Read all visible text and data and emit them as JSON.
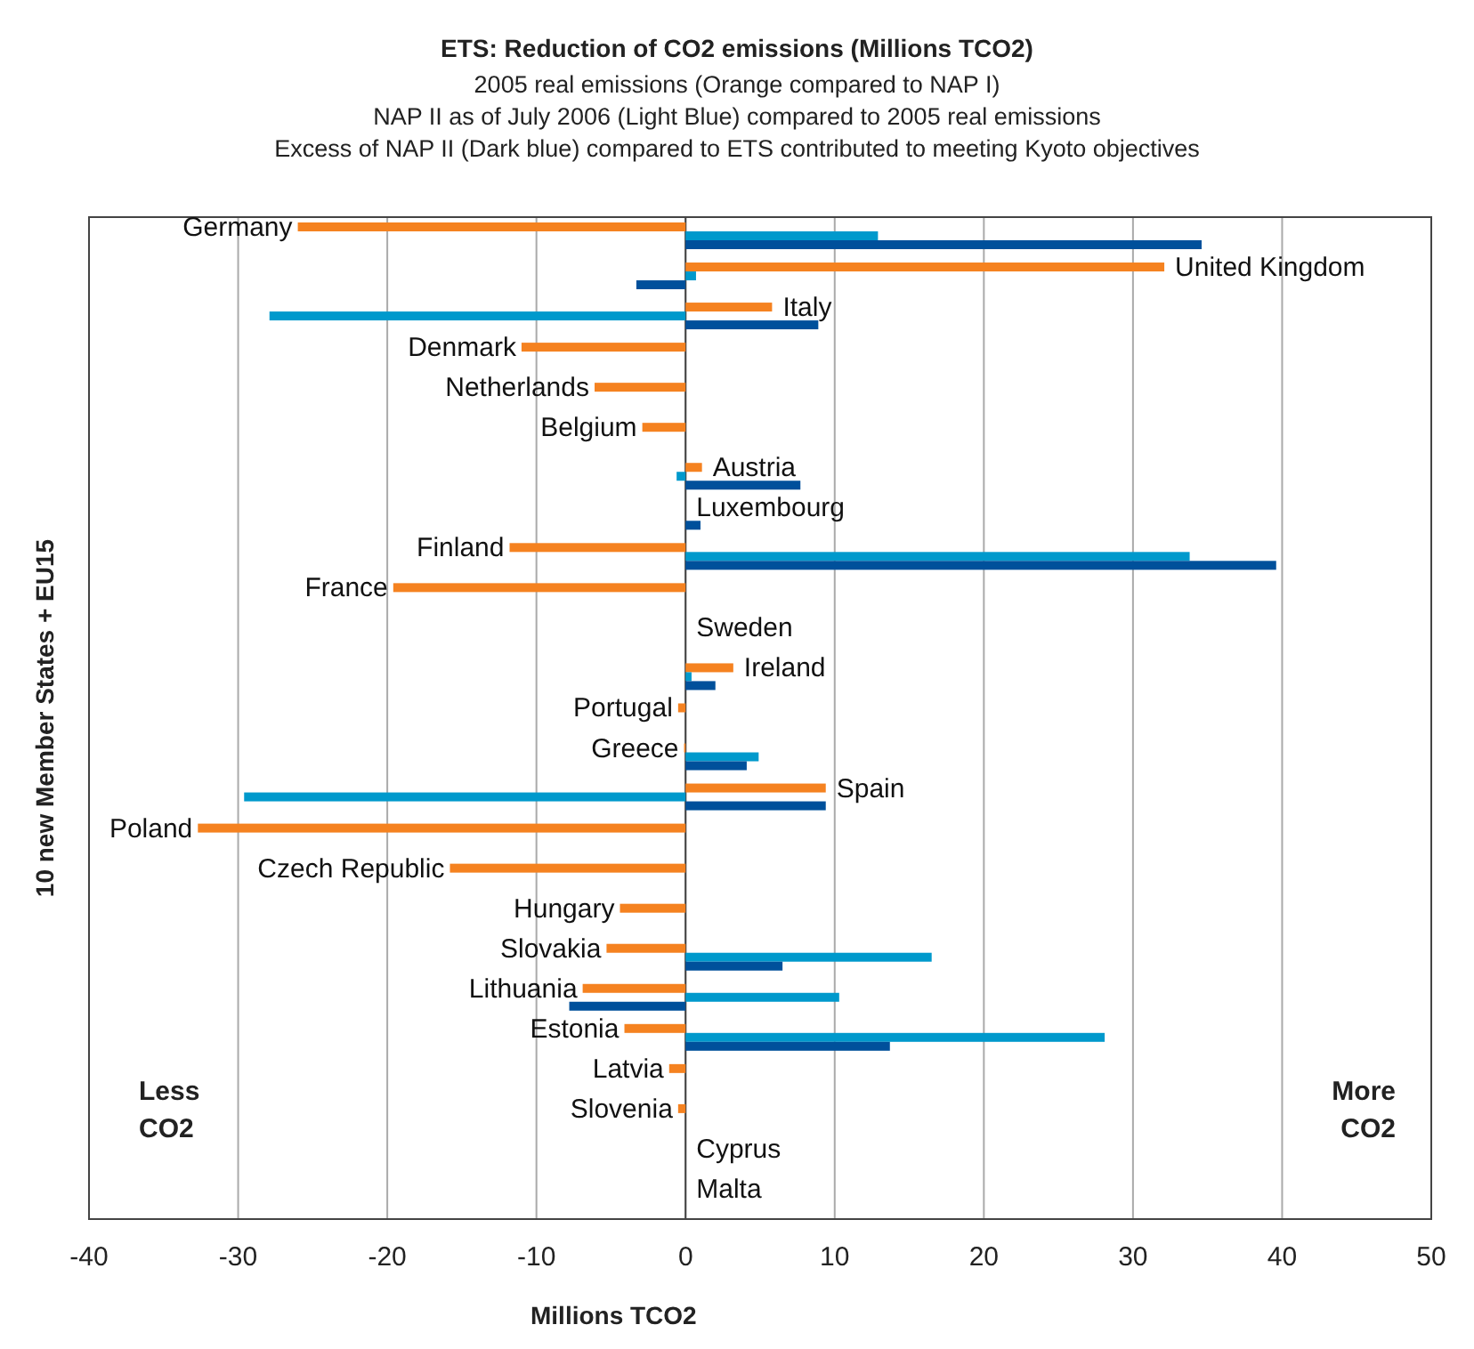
{
  "chart_data": {
    "type": "bar",
    "orientation": "horizontal",
    "title": "ETS: Reduction of CO2 emissions (Millions TCO2)",
    "subtitle": "2005 real emissions (Orange compared to NAP I)\nNAP II as of July 2006 (Light Blue) compared to 2005 real emissions\nExcess of NAP II (Dark blue) compared to ETS contributed to meeting Kyoto objectives",
    "xlabel": "Millions TCO2",
    "ylabel": "10 new Member States + EU15",
    "categories": [
      "Germany",
      "United Kingdom",
      "Italy",
      "Denmark",
      "Netherlands",
      "Belgium",
      "Austria",
      "Luxembourg",
      "Finland",
      "France",
      "Sweden",
      "Ireland",
      "Portugal",
      "Greece",
      "Spain",
      "Poland",
      "Czech Republic",
      "Hungary",
      "Slovakia",
      "Lithuania",
      "Estonia",
      "Latvia",
      "Slovenia",
      "Cyprus",
      "Malta"
    ],
    "series": [
      {
        "color": "#f58220",
        "values": [
          -26.0,
          32.1,
          5.8,
          -11.0,
          -6.1,
          -2.9,
          1.1,
          null,
          -11.8,
          -19.6,
          null,
          3.2,
          -0.5,
          -0.1,
          9.4,
          -32.7,
          -15.8,
          -4.4,
          -5.3,
          -6.9,
          -4.1,
          -1.1,
          -0.5,
          null,
          null
        ]
      },
      {
        "color": "#0099cc",
        "values": [
          12.9,
          0.7,
          -27.9,
          null,
          null,
          null,
          -0.6,
          null,
          33.8,
          null,
          null,
          0.4,
          null,
          4.9,
          -29.6,
          null,
          null,
          null,
          16.5,
          10.3,
          28.1,
          null,
          null,
          null,
          null
        ]
      },
      {
        "color": "#00509b",
        "values": [
          34.6,
          -3.3,
          8.9,
          null,
          null,
          null,
          7.7,
          1.0,
          39.6,
          null,
          null,
          2.0,
          null,
          4.1,
          9.4,
          null,
          null,
          null,
          6.5,
          -7.8,
          13.7,
          null,
          null,
          null,
          null
        ]
      }
    ],
    "xlim": [
      -40,
      50
    ],
    "xticks": [
      -40,
      -30,
      -20,
      -10,
      0,
      10,
      20,
      30,
      40,
      50
    ],
    "grid": "x",
    "annotations": [
      "Less\nCO2",
      "More\nCO2"
    ]
  }
}
